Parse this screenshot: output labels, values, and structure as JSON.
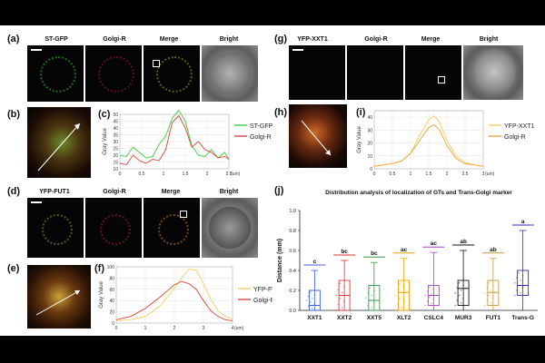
{
  "panels": {
    "a": {
      "label": "(a)",
      "channels": [
        "ST-GFP",
        "Golgi-R",
        "Merge",
        "Bright"
      ]
    },
    "b": {
      "label": "(b)"
    },
    "c": {
      "label": "(c)"
    },
    "d": {
      "label": "(d)",
      "channels": [
        "YFP-FUT1",
        "Golgi-R",
        "Merge",
        "Bright"
      ]
    },
    "e": {
      "label": "(e)"
    },
    "f": {
      "label": "(f)"
    },
    "g": {
      "label": "(g)",
      "channels": [
        "YFP-XXT1",
        "Golgi-R",
        "Merge",
        "Bright"
      ]
    },
    "h": {
      "label": "(h)"
    },
    "i": {
      "label": "(i)"
    },
    "j": {
      "label": "(j)"
    }
  },
  "colors": {
    "green": "#49d14a",
    "red": "#d9534f",
    "yellow": "#f6d26b",
    "orange": "#f3a84a",
    "blue": "#2b2fbf"
  },
  "chart_data": [
    {
      "id": "c",
      "type": "line",
      "ylabel": "Gray Value",
      "xunit": "(um)",
      "xlim": [
        0,
        2.5
      ],
      "ylim": [
        10,
        50
      ],
      "xticks": [
        0,
        0.5,
        1,
        1.5,
        2,
        2.5
      ],
      "yticks": [
        10,
        15,
        20,
        25,
        30,
        35,
        40,
        45,
        50
      ],
      "x": [
        0,
        0.15,
        0.3,
        0.45,
        0.6,
        0.75,
        0.9,
        1.05,
        1.2,
        1.35,
        1.5,
        1.65,
        1.8,
        1.95,
        2.1,
        2.25,
        2.4,
        2.5
      ],
      "series": [
        {
          "name": "ST-GFP",
          "color": "#49d14a",
          "values": [
            20,
            19,
            26,
            22,
            18,
            19,
            28,
            34,
            47,
            53,
            45,
            27,
            20,
            19,
            24,
            18,
            22,
            17
          ]
        },
        {
          "name": "Golgi-R",
          "color": "#d9534f",
          "values": [
            14,
            13,
            20,
            16,
            14,
            17,
            16,
            24,
            44,
            49,
            40,
            26,
            30,
            24,
            22,
            18,
            19,
            17
          ]
        }
      ]
    },
    {
      "id": "f",
      "type": "line",
      "ylabel": "Gray Value",
      "xunit": "(um)",
      "xlim": [
        0,
        4.0
      ],
      "ylim": [
        0,
        100
      ],
      "xticks": [
        0,
        1,
        2,
        3,
        4
      ],
      "yticks": [
        0,
        20,
        40,
        60,
        80,
        100
      ],
      "x": [
        0,
        0.5,
        1,
        1.5,
        2,
        2.25,
        2.5,
        2.75,
        3,
        3.25,
        3.5,
        3.75,
        4.0
      ],
      "series": [
        {
          "name": "YFP-FUT1",
          "color": "#f6d26b",
          "values": [
            4,
            6,
            12,
            30,
            62,
            80,
            96,
            94,
            70,
            42,
            22,
            12,
            7
          ]
        },
        {
          "name": "Golgi-R",
          "color": "#d9534f",
          "values": [
            6,
            12,
            26,
            46,
            68,
            74,
            70,
            60,
            40,
            22,
            12,
            6,
            4
          ]
        }
      ]
    },
    {
      "id": "i",
      "type": "line",
      "ylabel": "Gray Value",
      "xunit": "(um)",
      "xlim": [
        0,
        3.0
      ],
      "ylim": [
        0,
        45
      ],
      "xticks": [
        0,
        0.5,
        1,
        1.5,
        2,
        2.5,
        3
      ],
      "yticks": [
        0,
        10,
        20,
        30,
        40
      ],
      "x": [
        0,
        0.25,
        0.5,
        0.75,
        1,
        1.25,
        1.5,
        1.65,
        1.8,
        2,
        2.25,
        2.5,
        2.75,
        3
      ],
      "series": [
        {
          "name": "YFP-XXT1",
          "color": "#f6d26b",
          "values": [
            2,
            3,
            4,
            6,
            12,
            26,
            38,
            41,
            36,
            22,
            10,
            5,
            3,
            2
          ]
        },
        {
          "name": "Golgi-R",
          "color": "#f3a84a",
          "values": [
            2,
            3,
            4,
            6,
            12,
            22,
            32,
            34,
            30,
            18,
            8,
            4,
            3,
            2
          ]
        }
      ]
    },
    {
      "id": "j",
      "type": "box",
      "title": "Distribution analysis of localization of GTs and Trans-Golgi marker",
      "ylabel": "Distance (mm)",
      "ylim": [
        0,
        1.0
      ],
      "yticks": [
        "0.0",
        "0.2",
        "0.4",
        "0.6",
        "0.8",
        "1.0"
      ],
      "categories": [
        "XXT1",
        "XXT2",
        "XXT5",
        "XLT2",
        "CSLC4",
        "MUR3",
        "FUT1",
        "Trans-G"
      ],
      "letters": [
        "c",
        "bc",
        "bc",
        "ac",
        "ac",
        "ab",
        "ab",
        "a"
      ],
      "box_colors": [
        "#3b5bdb",
        "#e03131",
        "#2f9e44",
        "#f59f00",
        "#ae3ec9",
        "#111111",
        "#c69a3c",
        "#2b2fbf"
      ],
      "boxes": [
        {
          "min": 0.0,
          "q1": 0.0,
          "median": 0.05,
          "q3": 0.2,
          "max": 0.4
        },
        {
          "min": 0.0,
          "q1": 0.0,
          "median": 0.15,
          "q3": 0.3,
          "max": 0.5
        },
        {
          "min": 0.0,
          "q1": 0.0,
          "median": 0.1,
          "q3": 0.25,
          "max": 0.48
        },
        {
          "min": 0.0,
          "q1": 0.0,
          "median": 0.18,
          "q3": 0.3,
          "max": 0.52
        },
        {
          "min": 0.0,
          "q1": 0.05,
          "median": 0.15,
          "q3": 0.25,
          "max": 0.58
        },
        {
          "min": 0.0,
          "q1": 0.05,
          "median": 0.22,
          "q3": 0.3,
          "max": 0.6
        },
        {
          "min": 0.0,
          "q1": 0.05,
          "median": 0.18,
          "q3": 0.3,
          "max": 0.52
        },
        {
          "min": 0.0,
          "q1": 0.15,
          "median": 0.25,
          "q3": 0.4,
          "max": 0.8
        }
      ]
    }
  ]
}
